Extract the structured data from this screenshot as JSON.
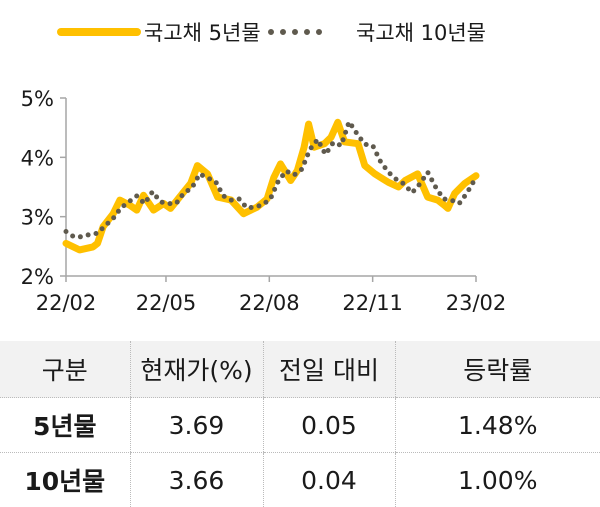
{
  "chart_data": {
    "type": "line",
    "title": "",
    "xlabel": "",
    "ylabel": "",
    "ylim": [
      2,
      5
    ],
    "yticks": [
      "2%",
      "3%",
      "4%",
      "5%"
    ],
    "ytick_values": [
      2,
      3,
      4,
      5
    ],
    "xlim": [
      "2022-02-01",
      "2023-02-01"
    ],
    "xticks": [
      "22/02",
      "22/05",
      "22/08",
      "22/11",
      "23/02"
    ],
    "xtick_dates": [
      "2022-02-01",
      "2022-05-01",
      "2022-08-01",
      "2022-11-01",
      "2023-02-01"
    ],
    "grid": false,
    "legend_placement": "top",
    "series": [
      {
        "name": "국고채 5년물",
        "color": "#FFC000",
        "style": "solid",
        "dates": [
          "2022-02-01",
          "2022-02-13",
          "2022-02-25",
          "2022-03-01",
          "2022-03-06",
          "2022-03-15",
          "2022-03-21",
          "2022-03-30",
          "2022-04-05",
          "2022-04-11",
          "2022-04-20",
          "2022-04-29",
          "2022-05-05",
          "2022-05-17",
          "2022-05-23",
          "2022-05-29",
          "2022-06-07",
          "2022-06-16",
          "2022-06-28",
          "2022-07-09",
          "2022-07-21",
          "2022-07-30",
          "2022-08-05",
          "2022-08-11",
          "2022-08-20",
          "2022-08-26",
          "2022-09-01",
          "2022-09-05",
          "2022-09-10",
          "2022-09-19",
          "2022-09-25",
          "2022-10-01",
          "2022-10-07",
          "2022-10-19",
          "2022-10-25",
          "2022-11-03",
          "2022-11-15",
          "2022-11-24",
          "2022-11-30",
          "2022-12-11",
          "2022-12-20",
          "2022-12-29",
          "2023-01-04",
          "2023-01-07",
          "2023-01-13",
          "2023-01-22",
          "2023-02-01"
        ],
        "values": [
          2.55,
          2.44,
          2.49,
          2.55,
          2.83,
          3.05,
          3.28,
          3.19,
          3.11,
          3.36,
          3.11,
          3.22,
          3.14,
          3.42,
          3.56,
          3.86,
          3.72,
          3.33,
          3.28,
          3.05,
          3.16,
          3.3,
          3.66,
          3.89,
          3.61,
          3.78,
          4.17,
          4.56,
          4.17,
          4.23,
          4.34,
          4.59,
          4.26,
          4.23,
          3.86,
          3.72,
          3.58,
          3.5,
          3.61,
          3.72,
          3.33,
          3.28,
          3.19,
          3.14,
          3.39,
          3.56,
          3.69
        ]
      },
      {
        "name": "국고채 10년물",
        "color": "#5F5A4E",
        "style": "dotted",
        "dates": [
          "2022-02-01",
          "2022-02-08",
          "2022-02-15",
          "2022-02-22",
          "2022-03-01",
          "2022-03-08",
          "2022-03-15",
          "2022-03-22",
          "2022-03-29",
          "2022-04-05",
          "2022-04-12",
          "2022-04-19",
          "2022-04-26",
          "2022-05-03",
          "2022-05-10",
          "2022-05-17",
          "2022-05-24",
          "2022-05-31",
          "2022-06-07",
          "2022-06-14",
          "2022-06-21",
          "2022-06-28",
          "2022-07-05",
          "2022-07-12",
          "2022-07-19",
          "2022-07-26",
          "2022-08-02",
          "2022-08-09",
          "2022-08-16",
          "2022-08-23",
          "2022-08-30",
          "2022-09-06",
          "2022-09-13",
          "2022-09-20",
          "2022-09-27",
          "2022-10-04",
          "2022-10-11",
          "2022-10-18",
          "2022-10-25",
          "2022-11-01",
          "2022-11-08",
          "2022-11-15",
          "2022-11-22",
          "2022-11-29",
          "2022-12-06",
          "2022-12-13",
          "2022-12-20",
          "2022-12-27",
          "2023-01-03",
          "2023-01-10",
          "2023-01-17",
          "2023-01-24",
          "2023-02-01"
        ],
        "values": [
          2.75,
          2.66,
          2.66,
          2.7,
          2.72,
          2.85,
          2.97,
          3.15,
          3.25,
          3.35,
          3.22,
          3.42,
          3.25,
          3.22,
          3.22,
          3.4,
          3.48,
          3.72,
          3.65,
          3.6,
          3.35,
          3.28,
          3.3,
          3.15,
          3.16,
          3.2,
          3.3,
          3.6,
          3.77,
          3.7,
          3.8,
          4.13,
          4.3,
          4.05,
          4.25,
          4.2,
          4.6,
          4.4,
          4.22,
          4.2,
          3.93,
          3.75,
          3.63,
          3.55,
          3.4,
          3.55,
          3.75,
          3.5,
          3.3,
          3.28,
          3.22,
          3.4,
          3.66
        ]
      }
    ]
  },
  "table": {
    "headers": [
      "구분",
      "현재가(%)",
      "전일 대비",
      "등락률"
    ],
    "rows": [
      [
        "5년물",
        "3.69",
        "0.05",
        "1.48%"
      ],
      [
        "10년물",
        "3.66",
        "0.04",
        "1.00%"
      ]
    ]
  }
}
